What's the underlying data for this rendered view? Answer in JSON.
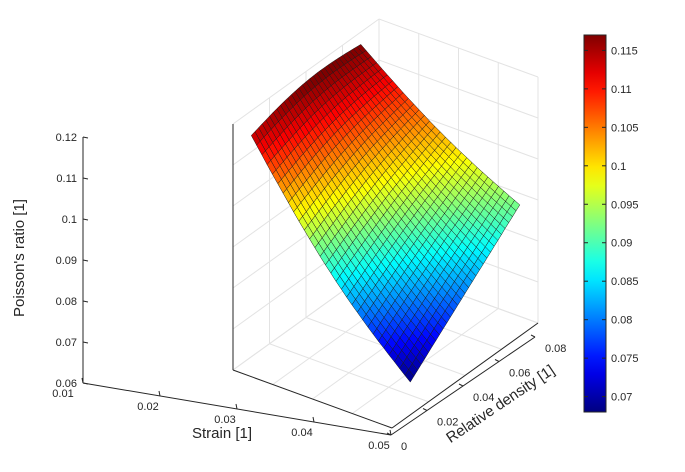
{
  "chart_data": {
    "type": "surface",
    "xlabel": "Strain [1]",
    "ylabel": "Relative density [1]",
    "zlabel": "Poisson's ratio [1]",
    "xlim": [
      0.01,
      0.05
    ],
    "ylim": [
      0,
      0.08
    ],
    "zlim": [
      0.06,
      0.12
    ],
    "x_ticks": [
      "0.01",
      "0.02",
      "0.03",
      "0.04",
      "0.05"
    ],
    "y_ticks": [
      "0",
      "0.02",
      "0.04",
      "0.06",
      "0.08"
    ],
    "z_ticks": [
      "0.06",
      "0.07",
      "0.08",
      "0.09",
      "0.1",
      "0.11",
      "0.12"
    ],
    "grid": true,
    "colormap": "jet",
    "color_range": [
      0.068,
      0.117
    ],
    "colorbar_ticks": [
      "0.07",
      "0.075",
      "0.08",
      "0.085",
      "0.09",
      "0.095",
      "0.1",
      "0.105",
      "0.11",
      "0.115"
    ],
    "surface": {
      "strain_range": [
        0.01,
        0.05
      ],
      "density_range": [
        0.01,
        0.07
      ],
      "corners": [
        {
          "strain": 0.01,
          "density": 0.01,
          "poisson_ratio": 0.114
        },
        {
          "strain": 0.01,
          "density": 0.07,
          "poisson_ratio": 0.117
        },
        {
          "strain": 0.05,
          "density": 0.01,
          "poisson_ratio": 0.068
        },
        {
          "strain": 0.05,
          "density": 0.07,
          "poisson_ratio": 0.092
        }
      ],
      "grid_size": [
        30,
        30
      ]
    }
  }
}
